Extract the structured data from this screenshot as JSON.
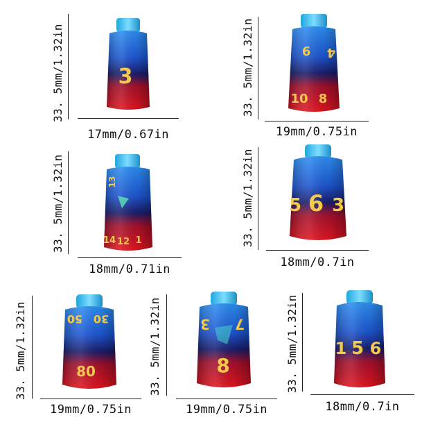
{
  "colors": {
    "top_blue": "#1d6fe0",
    "mid_blue": "#16257a",
    "bottom_red": "#d01224",
    "numerals": "#f2c94c",
    "neck": "#39c4ee"
  },
  "dice": [
    {
      "height_label": "33. 5mm/1.32in",
      "width_label": "17mm/0.67in",
      "numerals": [
        "3"
      ]
    },
    {
      "height_label": "33. 5mm/1.32in",
      "width_label": "19mm/0.75in",
      "numerals": [
        "6",
        "4",
        "10",
        "8"
      ]
    },
    {
      "height_label": "33. 5mm/1.32in",
      "width_label": "18mm/0.71in",
      "numerals": [
        "13",
        "14",
        "12",
        "1"
      ]
    },
    {
      "height_label": "33. 5mm/1.32in",
      "width_label": "18mm/0.7in",
      "numerals": [
        "5",
        "6",
        "3"
      ]
    },
    {
      "height_label": "33. 5mm/1.32in",
      "width_label": "19mm/0.75in",
      "numerals": [
        "50",
        "30",
        "80"
      ]
    },
    {
      "height_label": "33. 5mm/1.32in",
      "width_label": "19mm/0.75in",
      "numerals": [
        "3",
        "7",
        "8"
      ]
    },
    {
      "height_label": "33. 5mm/1.32in",
      "width_label": "18mm/0.7in",
      "numerals": [
        "1",
        "5",
        "6"
      ]
    }
  ]
}
